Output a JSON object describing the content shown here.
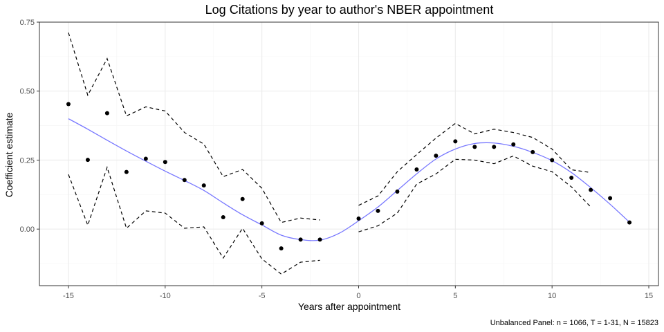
{
  "chart_data": {
    "type": "scatter",
    "title": "Log Citations by year to author's NBER appointment",
    "xlabel": "Years after appointment",
    "ylabel": "Coefficient estimate",
    "caption": "Unbalanced Panel: n = 1066, T = 1-31, N = 15823",
    "xlim": [
      -16.5,
      15.5
    ],
    "ylim": [
      -0.205,
      0.75
    ],
    "x_ticks": [
      -15,
      -10,
      -5,
      0,
      5,
      10,
      15
    ],
    "x_tick_labels": [
      "-15",
      "-10",
      "-5",
      "0",
      "5",
      "10",
      "15"
    ],
    "y_ticks": [
      0.0,
      0.25,
      0.5,
      0.75
    ],
    "y_tick_labels": [
      "0.00",
      "0.25",
      "0.50",
      "0.75"
    ],
    "grid": true,
    "legend": "none",
    "colors": {
      "points": "#000000",
      "ci": "#000000",
      "smooth": "#7777ff"
    },
    "series": [
      {
        "kind": "points",
        "x": [
          -15,
          -14,
          -13,
          -12,
          -11,
          -10,
          -9,
          -8,
          -7,
          -6,
          -5,
          -4,
          -3,
          -2,
          0,
          1,
          2,
          3,
          4,
          5,
          6,
          7,
          8,
          9,
          10,
          11,
          12,
          13,
          14
        ],
        "y": [
          0.453,
          0.251,
          0.42,
          0.207,
          0.255,
          0.243,
          0.178,
          0.158,
          0.043,
          0.109,
          0.021,
          -0.07,
          -0.038,
          -0.038,
          0.038,
          0.066,
          0.136,
          0.216,
          0.266,
          0.318,
          0.298,
          0.298,
          0.307,
          0.279,
          0.25,
          0.186,
          0.142,
          0.112,
          0.024
        ]
      },
      {
        "kind": "ci-upper",
        "segments": [
          {
            "x": [
              -15,
              -14,
              -13,
              -12,
              -11,
              -10,
              -9,
              -8,
              -7,
              -6,
              -5,
              -4,
              -3,
              -2
            ],
            "y": [
              0.712,
              0.485,
              0.618,
              0.41,
              0.443,
              0.428,
              0.35,
              0.308,
              0.19,
              0.216,
              0.148,
              0.024,
              0.04,
              0.033
            ]
          },
          {
            "x": [
              0,
              1,
              2,
              3,
              4,
              5,
              6,
              7,
              8,
              9,
              10,
              11,
              12
            ],
            "y": [
              0.086,
              0.12,
              0.208,
              0.27,
              0.33,
              0.383,
              0.345,
              0.362,
              0.35,
              0.332,
              0.29,
              0.215,
              0.205
            ]
          }
        ]
      },
      {
        "kind": "ci-lower",
        "segments": [
          {
            "x": [
              -15,
              -14,
              -13,
              -12,
              -11,
              -10,
              -9,
              -8,
              -7,
              -6,
              -5,
              -4,
              -3,
              -2
            ],
            "y": [
              0.198,
              0.014,
              0.224,
              0.003,
              0.066,
              0.058,
              0.003,
              0.008,
              -0.105,
              0.003,
              -0.108,
              -0.163,
              -0.12,
              -0.113
            ]
          },
          {
            "x": [
              0,
              1,
              2,
              3,
              4,
              5,
              6,
              7,
              8,
              9,
              10,
              11,
              12
            ],
            "y": [
              -0.01,
              0.012,
              0.058,
              0.163,
              0.2,
              0.253,
              0.25,
              0.237,
              0.265,
              0.228,
              0.208,
              0.153,
              0.08
            ]
          }
        ]
      },
      {
        "kind": "smooth",
        "x": [
          -15,
          -14,
          -13,
          -12,
          -11,
          -10,
          -9,
          -8,
          -7,
          -6,
          -5,
          -4,
          -3,
          -2,
          -1,
          0,
          1,
          2,
          3,
          4,
          5,
          6,
          7,
          8,
          9,
          10,
          11,
          12,
          13,
          14
        ],
        "y": [
          0.4,
          0.362,
          0.322,
          0.283,
          0.246,
          0.21,
          0.176,
          0.14,
          0.095,
          0.052,
          0.015,
          -0.022,
          -0.038,
          -0.04,
          -0.015,
          0.03,
          0.08,
          0.14,
          0.2,
          0.254,
          0.29,
          0.31,
          0.312,
          0.3,
          0.278,
          0.248,
          0.205,
          0.15,
          0.09,
          0.025
        ]
      }
    ]
  }
}
